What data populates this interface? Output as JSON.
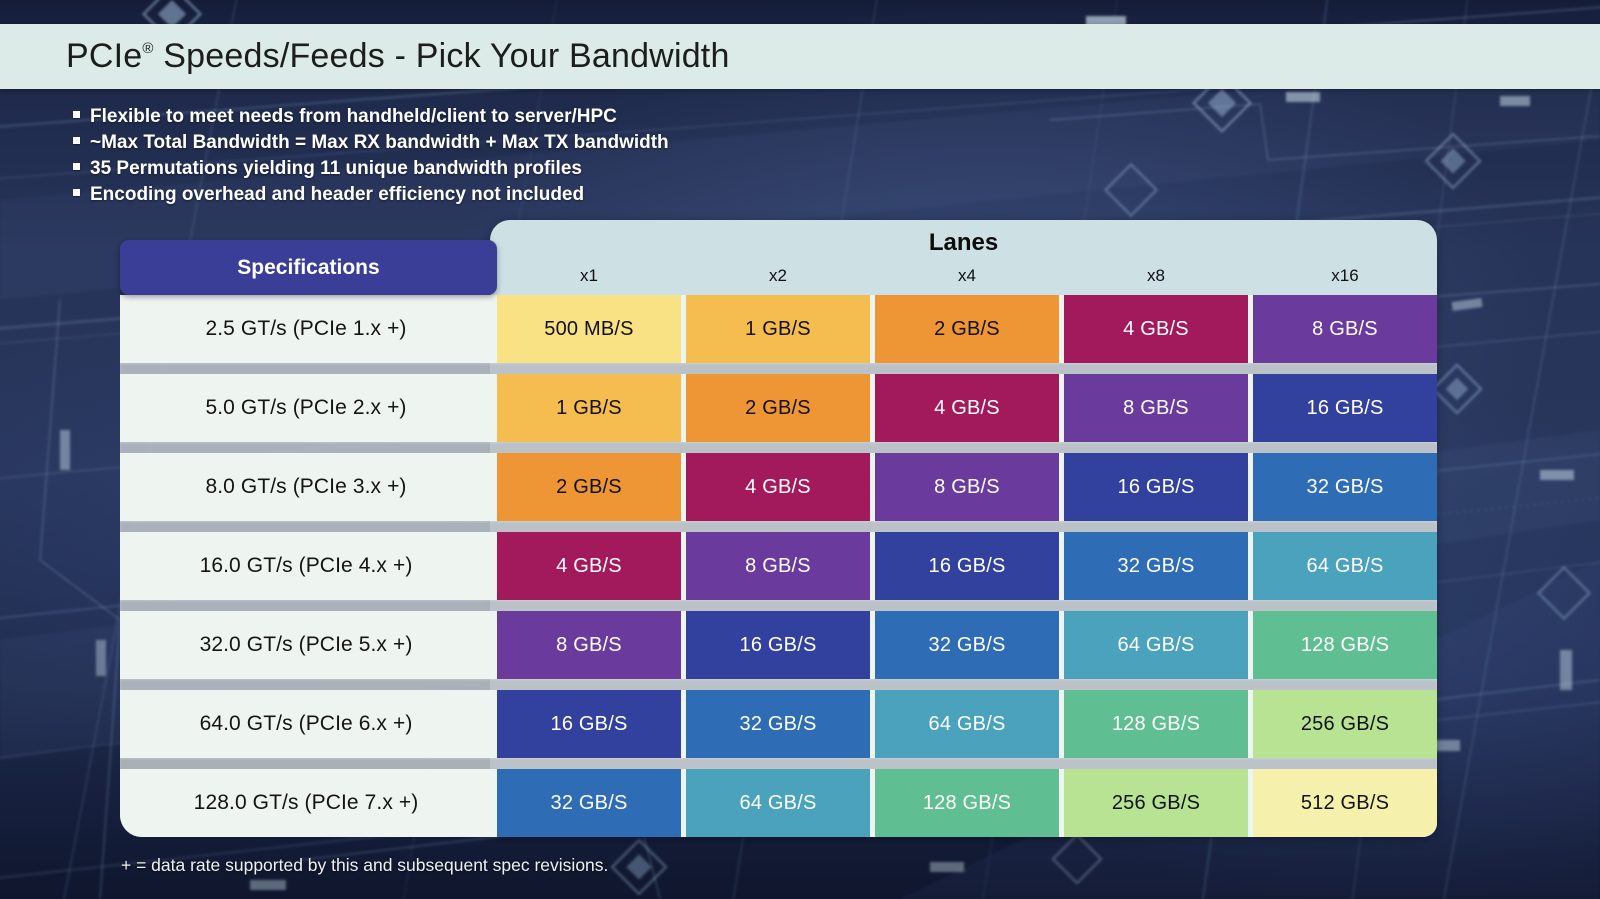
{
  "title": {
    "brand": "PCIe",
    "reg": "®",
    "rest": " Speeds/Feeds - Pick Your Bandwidth"
  },
  "bullets": [
    "Flexible to meet needs from handheld/client to server/HPC",
    "~Max Total Bandwidth = Max RX bandwidth + Max TX bandwidth",
    "35 Permutations yielding 11 unique bandwidth profiles",
    "Encoding overhead and header efficiency not included"
  ],
  "footnote": "+ = data rate supported by this and subsequent spec revisions.",
  "chart_data": {
    "type": "table",
    "title": "Lanes",
    "corner_label": "Specifications",
    "columns": [
      "x1",
      "x2",
      "x4",
      "x8",
      "x16"
    ],
    "row_labels": [
      "2.5 GT/s (PCIe 1.x +)",
      "5.0 GT/s (PCIe 2.x +)",
      "8.0 GT/s (PCIe 3.x +)",
      "16.0 GT/s (PCIe 4.x +)",
      "32.0 GT/s (PCIe 5.x +)",
      "64.0 GT/s (PCIe 6.x +)",
      "128.0 GT/s (PCIe 7.x +)"
    ],
    "values": [
      [
        "500 MB/S",
        "1 GB/S",
        "2 GB/S",
        "4 GB/S",
        "8 GB/S"
      ],
      [
        "1 GB/S",
        "2 GB/S",
        "4 GB/S",
        "8 GB/S",
        "16 GB/S"
      ],
      [
        "2 GB/S",
        "4 GB/S",
        "8 GB/S",
        "16 GB/S",
        "32 GB/S"
      ],
      [
        "4 GB/S",
        "8 GB/S",
        "16 GB/S",
        "32 GB/S",
        "64 GB/S"
      ],
      [
        "8 GB/S",
        "16 GB/S",
        "32 GB/S",
        "64 GB/S",
        "128 GB/S"
      ],
      [
        "16 GB/S",
        "32 GB/S",
        "64 GB/S",
        "128 GB/S",
        "256 GB/S"
      ],
      [
        "32 GB/S",
        "64 GB/S",
        "128 GB/S",
        "256 GB/S",
        "512 GB/S"
      ]
    ],
    "cell_styles": {
      "500 MB/S": {
        "bg": "#f8e283",
        "fg": "#121212"
      },
      "1 GB/S": {
        "bg": "#f5bd50",
        "fg": "#121212"
      },
      "2 GB/S": {
        "bg": "#ee9535",
        "fg": "#121212"
      },
      "4 GB/S": {
        "bg": "#a21a5c",
        "fg": "#ffffff"
      },
      "8 GB/S": {
        "bg": "#6a3a9c",
        "fg": "#ffffff"
      },
      "16 GB/S": {
        "bg": "#32409e",
        "fg": "#ffffff"
      },
      "32 GB/S": {
        "bg": "#2e6cb6",
        "fg": "#ffffff"
      },
      "64 GB/S": {
        "bg": "#4aa2bd",
        "fg": "#ffffff"
      },
      "128 GB/S": {
        "bg": "#5fbf92",
        "fg": "#ffffff"
      },
      "256 GB/S": {
        "bg": "#b8e392",
        "fg": "#121212"
      },
      "512 GB/S": {
        "bg": "#f5f0ac",
        "fg": "#121212"
      }
    },
    "accent_colors": {
      "title_bar_bg": "#dcebe7",
      "lanes_panel_bg": "#cde0e4",
      "spec_header_bg": "#3a3e96",
      "spec_cell_bg": "#eef4ef",
      "row_gap": "#aab1b5",
      "background_navy": "#27345a"
    }
  }
}
